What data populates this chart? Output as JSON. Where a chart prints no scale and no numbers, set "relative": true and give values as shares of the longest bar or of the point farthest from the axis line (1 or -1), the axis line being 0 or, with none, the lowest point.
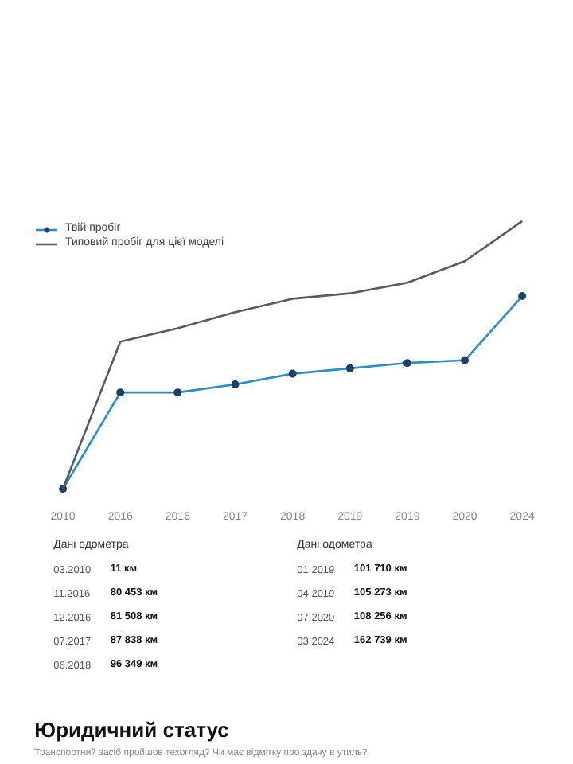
{
  "chart_data": {
    "type": "line",
    "relative": true,
    "categories": [
      "2010",
      "2016",
      "2016",
      "2017",
      "2018",
      "2019",
      "2019",
      "2020",
      "2024"
    ],
    "series": [
      {
        "name": "Твій пробіг",
        "color": "#2a8ec8",
        "marker": "circle",
        "values": [
          0,
          0.36,
          0.36,
          0.39,
          0.43,
          0.45,
          0.47,
          0.48,
          0.72
        ]
      },
      {
        "name": "Типовий пробіг для цієї моделі",
        "color": "#555a63",
        "marker": "none",
        "values": [
          0,
          0.55,
          0.6,
          0.66,
          0.71,
          0.73,
          0.77,
          0.85,
          1
        ]
      }
    ],
    "tick_labels": "x",
    "legend": "top left",
    "line_style": "solid",
    "annotations": [
      "Дані одометра",
      "Дані одометра",
      "03.2010",
      "11.2016",
      "12.2016",
      "07.2017",
      "06.2018",
      "01.2019",
      "04.2019",
      "07.2020",
      "03.2024",
      "11 км",
      "80 453 км",
      "81 508 км",
      "87 838 км",
      "96 349 км",
      "101 710 км",
      "105 273 км",
      "108 256 км",
      "162 739 км",
      "Юридичний статус",
      "Транспортний засіб пройшов техогляд? Чи має відмітку про здачу в утиль?"
    ]
  }
}
